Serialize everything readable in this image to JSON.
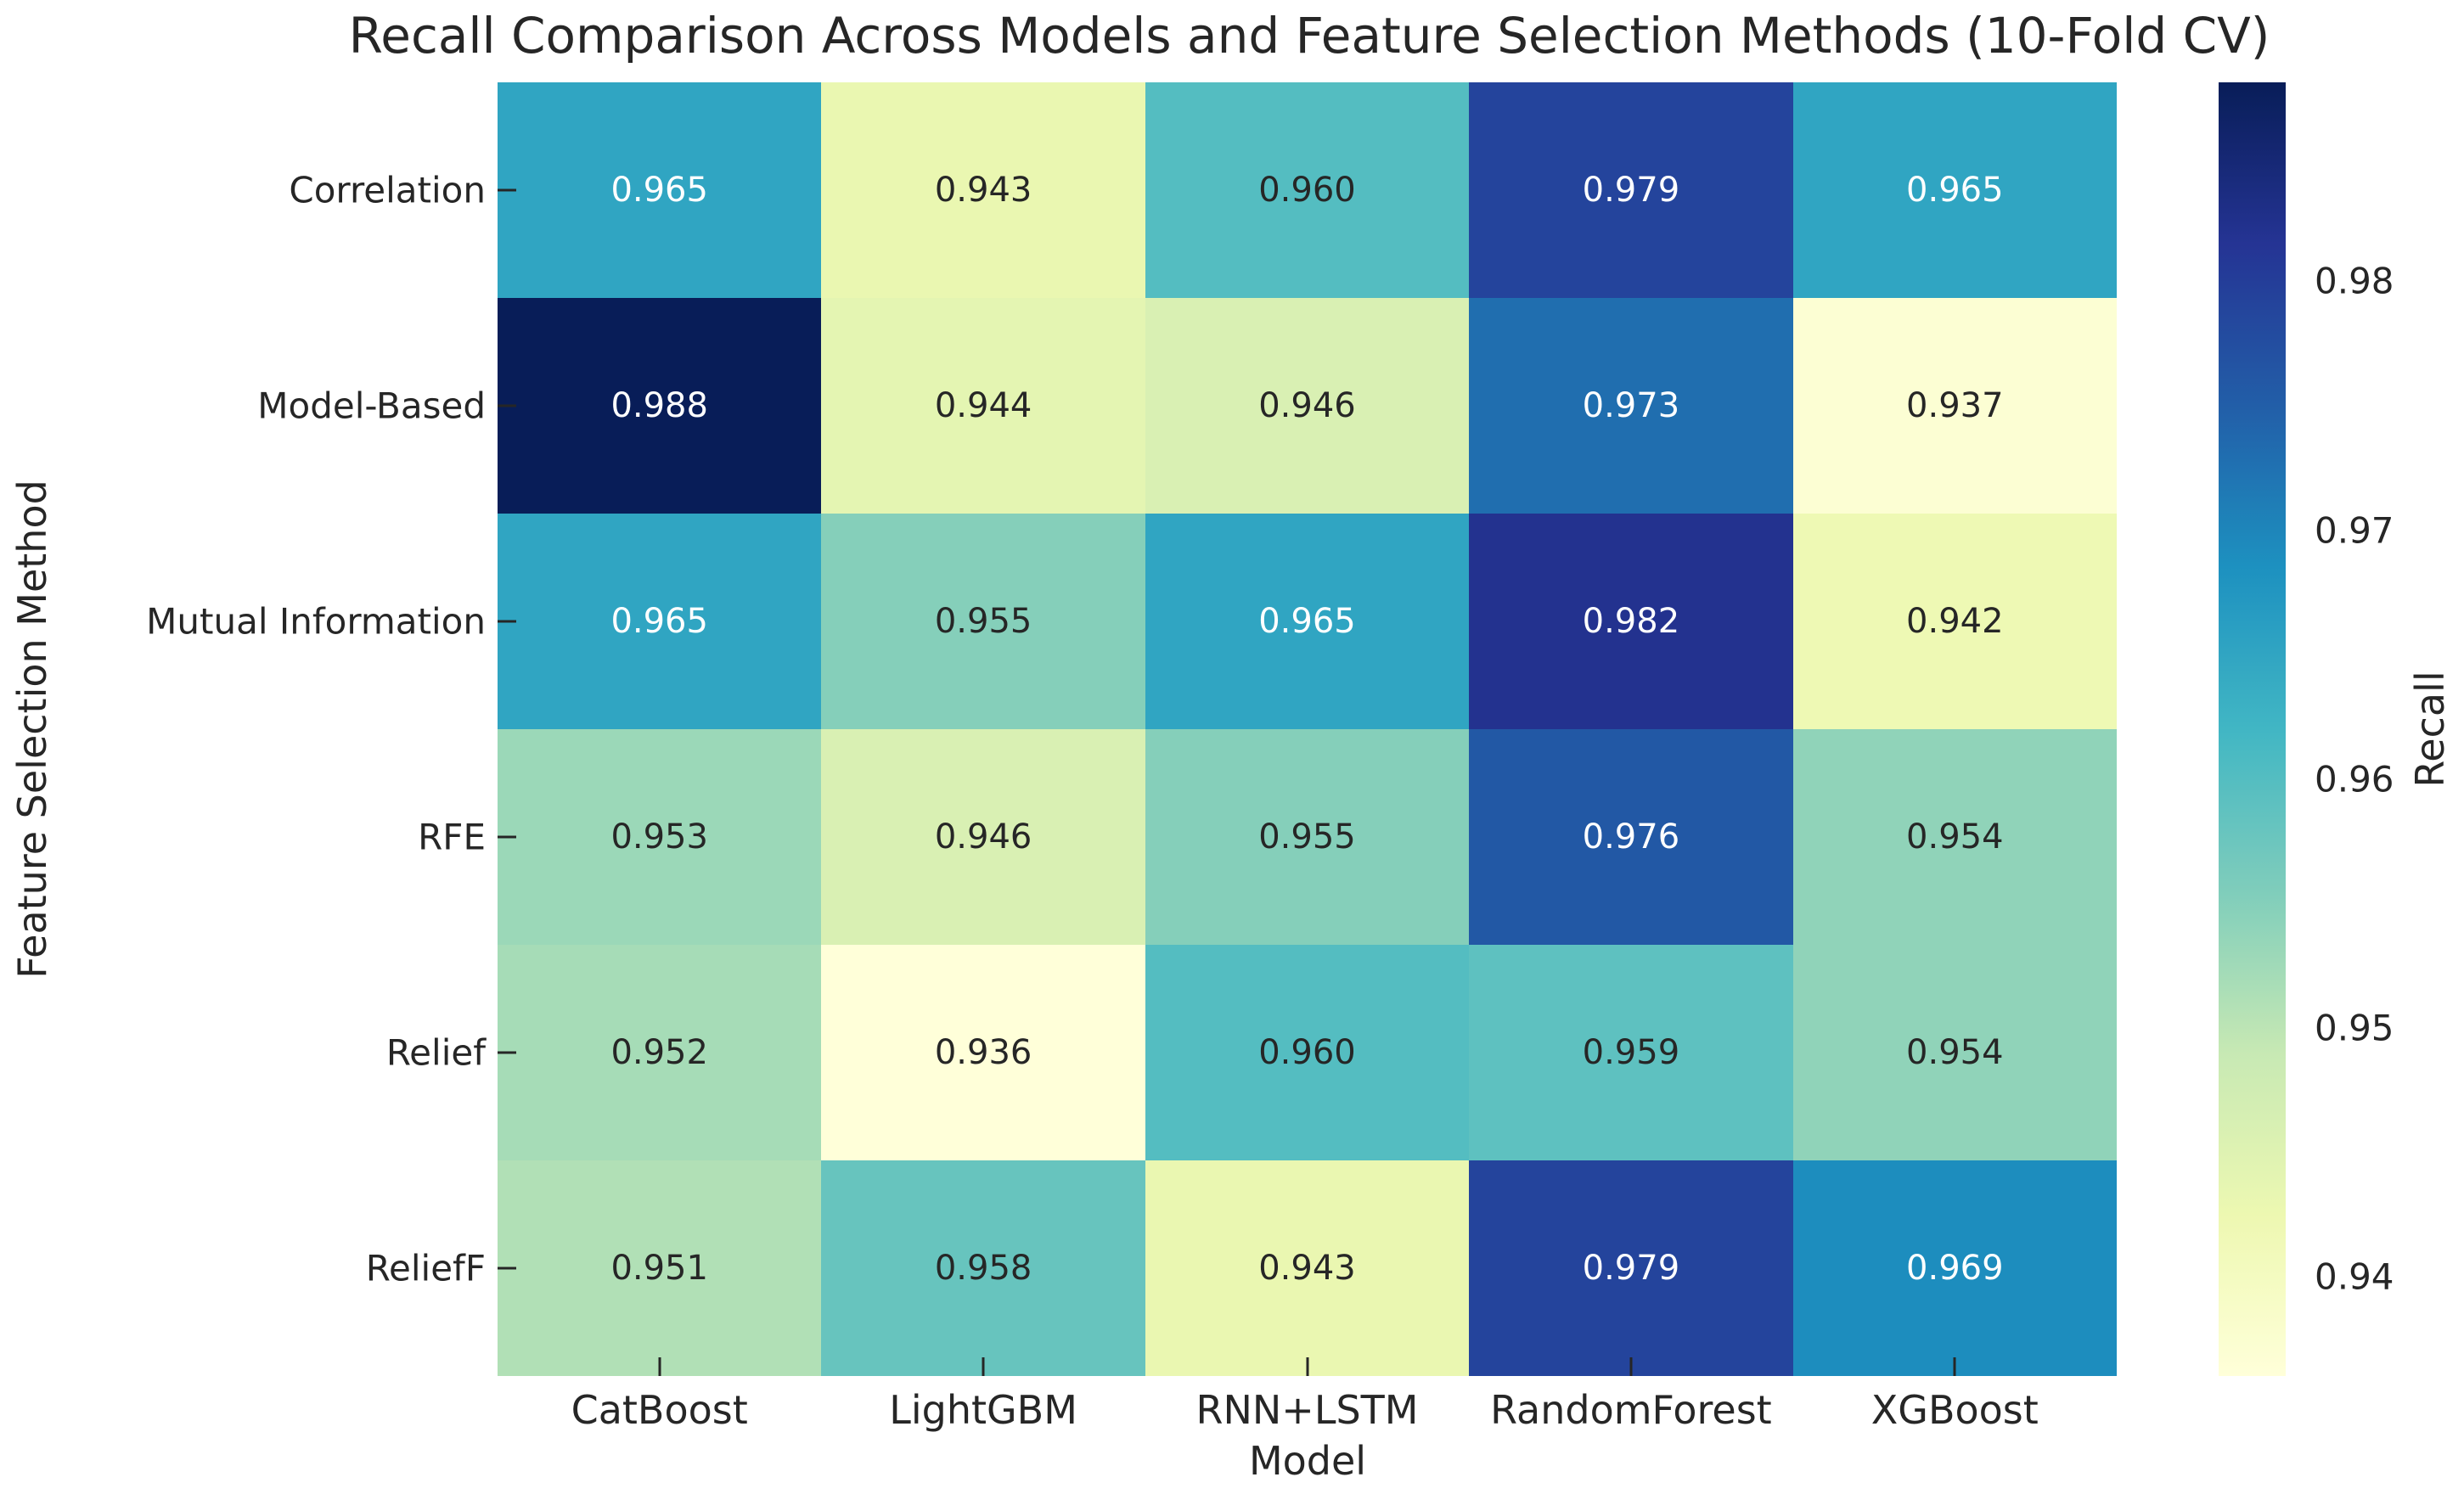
{
  "chart_data": {
    "type": "heatmap",
    "title": "Recall Comparison Across Models and Feature Selection Methods (10-Fold CV)",
    "xlabel": "Model",
    "ylabel": "Feature Selection Method",
    "x_categories": [
      "CatBoost",
      "LightGBM",
      "RNN+LSTM",
      "RandomForest",
      "XGBoost"
    ],
    "y_categories": [
      "Correlation",
      "Model-Based",
      "Mutual Information",
      "RFE",
      "Relief",
      "ReliefF"
    ],
    "values": [
      [
        0.965,
        0.943,
        0.96,
        0.979,
        0.965
      ],
      [
        0.988,
        0.944,
        0.946,
        0.973,
        0.937
      ],
      [
        0.965,
        0.955,
        0.965,
        0.982,
        0.942
      ],
      [
        0.953,
        0.946,
        0.955,
        0.976,
        0.954
      ],
      [
        0.952,
        0.936,
        0.96,
        0.959,
        0.954
      ],
      [
        0.951,
        0.958,
        0.943,
        0.979,
        0.969
      ]
    ],
    "value_decimals": 3,
    "colormap": "YlGnBu",
    "colormap_colors": [
      "#ffffd9",
      "#edf8b1",
      "#c7e9b4",
      "#7fcdbb",
      "#41b6c4",
      "#1d91c0",
      "#225ea8",
      "#253494",
      "#081d58"
    ],
    "vmin": 0.936,
    "vmax": 0.988,
    "grid": false,
    "annotation_colors": {
      "on_dark": "#ffffff",
      "on_light": "#262626"
    },
    "colorbar": {
      "label": "Recall",
      "ticks": [
        0.98,
        0.97,
        0.96,
        0.95,
        0.94
      ],
      "position": "right"
    }
  }
}
